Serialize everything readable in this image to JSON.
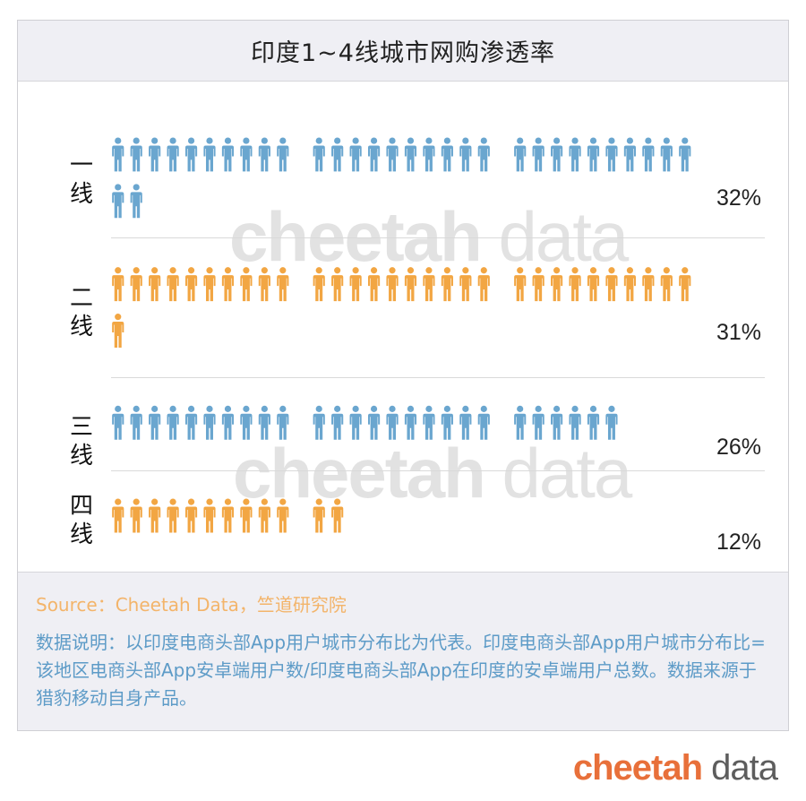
{
  "title": "印度1~4线城市网购渗透率",
  "watermark": {
    "strong": "cheetah",
    "light": " data"
  },
  "brand": {
    "strong": "cheetah",
    "light": " data"
  },
  "source": "Source：Cheetah Data，竺道研究院",
  "note": "数据说明：以印度电商头部App用户城市分布比为代表。印度电商头部App用户城市分布比=该地区电商头部App安卓端用户数/印度电商头部App在印度的安卓端用户总数。数据来源于猎豹移动自身产品。",
  "colors": {
    "blue": "#6aa6cf",
    "orange": "#f2a643"
  },
  "chart_data": {
    "type": "bar",
    "categories": [
      "一线",
      "二线",
      "三线",
      "四线"
    ],
    "values": [
      32,
      31,
      26,
      12
    ],
    "value_labels": [
      "32%",
      "31%",
      "26%",
      "12%"
    ],
    "row_colors": [
      "blue",
      "orange",
      "blue",
      "orange"
    ],
    "unit": "%",
    "icon_unit": 1
  }
}
